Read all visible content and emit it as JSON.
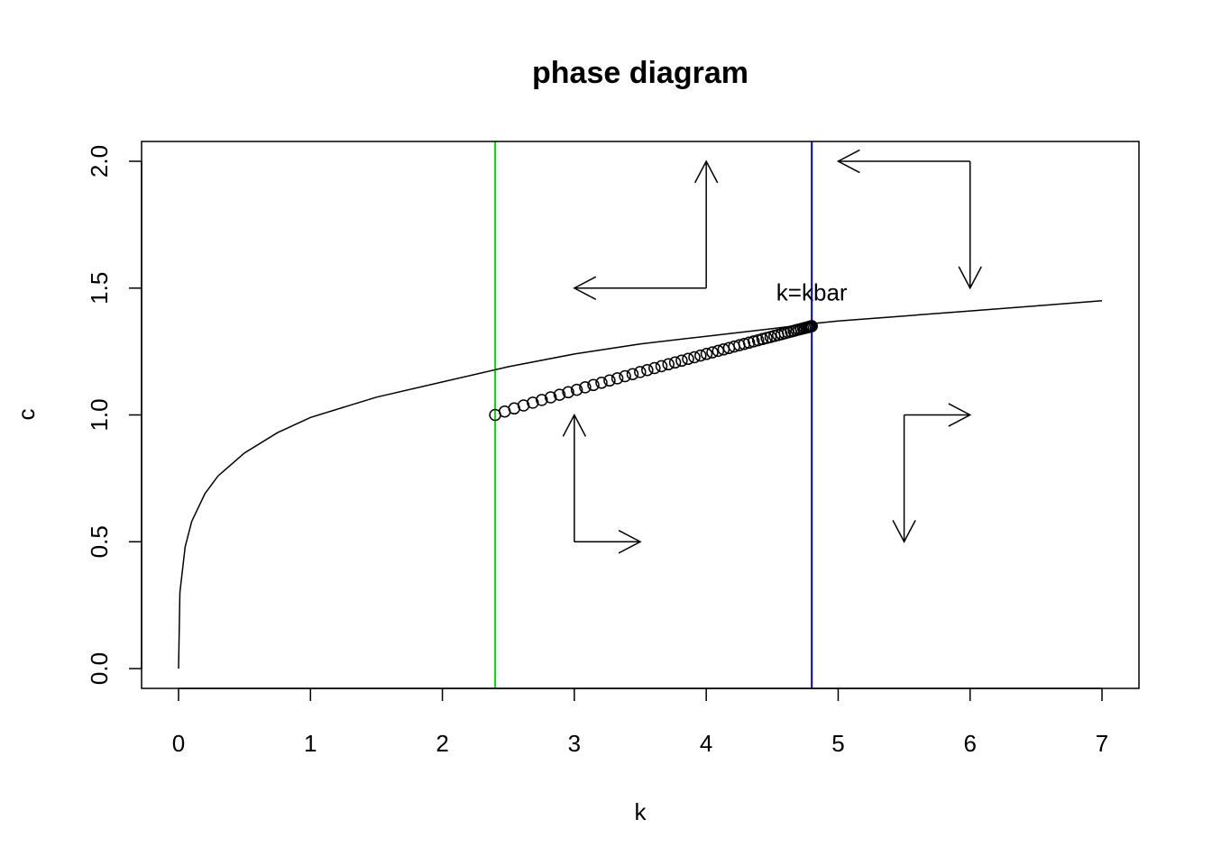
{
  "chart_data": {
    "type": "scatter",
    "title": "phase diagram",
    "xlabel": "k",
    "ylabel": "c",
    "xlim": [
      0,
      7
    ],
    "ylim": [
      0,
      2
    ],
    "x_ticks": [
      "0",
      "1",
      "2",
      "3",
      "4",
      "5",
      "6",
      "7"
    ],
    "y_ticks": [
      "0.0",
      "0.5",
      "1.0",
      "1.5",
      "2.0"
    ],
    "grid": false,
    "legend": "none",
    "curve": {
      "description_type": "line",
      "points": [
        [
          0,
          0
        ],
        [
          0.01,
          0.3
        ],
        [
          0.05,
          0.48
        ],
        [
          0.1,
          0.58
        ],
        [
          0.2,
          0.69
        ],
        [
          0.3,
          0.76
        ],
        [
          0.5,
          0.85
        ],
        [
          0.75,
          0.93
        ],
        [
          1.0,
          0.99
        ],
        [
          1.5,
          1.07
        ],
        [
          2.0,
          1.13
        ],
        [
          2.5,
          1.19
        ],
        [
          3.0,
          1.24
        ],
        [
          3.5,
          1.28
        ],
        [
          4.0,
          1.31
        ],
        [
          4.5,
          1.34
        ],
        [
          4.8,
          1.36
        ],
        [
          5.0,
          1.37
        ],
        [
          5.5,
          1.39
        ],
        [
          6.0,
          1.41
        ],
        [
          6.5,
          1.43
        ],
        [
          7.0,
          1.45
        ]
      ],
      "color": "#000000"
    },
    "path_points": {
      "k_start": 2.4,
      "c_start": 1.0,
      "k_end": 4.8,
      "c_end": 1.35,
      "count": 60,
      "marker": "open-circle",
      "color": "#000000"
    },
    "vlines": [
      {
        "x": 2.4,
        "color": "#00dd00"
      },
      {
        "x": 4.8,
        "color": "#0000cc"
      }
    ],
    "arrows": [
      {
        "from": [
          4,
          1.5
        ],
        "to": [
          4,
          2
        ]
      },
      {
        "from": [
          4,
          1.5
        ],
        "to": [
          3,
          1.5
        ]
      },
      {
        "from": [
          6,
          2
        ],
        "to": [
          5,
          2
        ]
      },
      {
        "from": [
          6,
          2
        ],
        "to": [
          6,
          1.5
        ]
      },
      {
        "from": [
          3,
          0.5
        ],
        "to": [
          3,
          1
        ]
      },
      {
        "from": [
          3,
          0.5
        ],
        "to": [
          3.5,
          0.5
        ]
      },
      {
        "from": [
          5.5,
          1
        ],
        "to": [
          6,
          1
        ]
      },
      {
        "from": [
          5.5,
          1
        ],
        "to": [
          5.5,
          0.5
        ]
      }
    ],
    "annotation": {
      "text": "k=kbar",
      "x": 4.8,
      "y": 1.48
    }
  }
}
